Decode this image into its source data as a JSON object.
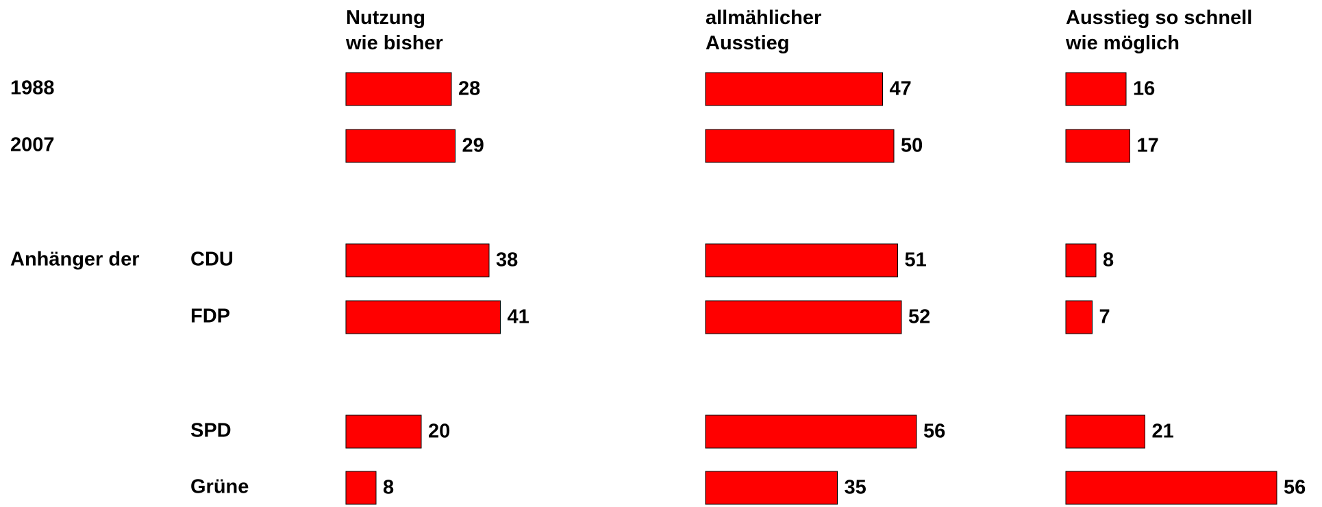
{
  "chart_data": {
    "type": "bar",
    "categories": [
      "1988",
      "2007",
      "CDU",
      "FDP",
      "SPD",
      "Grüne"
    ],
    "group_label": "Anhänger der",
    "series": [
      {
        "name": "Nutzung\nwie bisher",
        "color": "#ff0000",
        "values": [
          28,
          29,
          38,
          41,
          20,
          8
        ]
      },
      {
        "name": "allmählicher\nAusstieg",
        "color": "#ff0000",
        "values": [
          47,
          50,
          51,
          52,
          56,
          35
        ]
      },
      {
        "name": "Ausstieg so schnell\nwie möglich",
        "color": "#ff0000",
        "values": [
          16,
          17,
          8,
          7,
          21,
          56
        ]
      }
    ]
  }
}
